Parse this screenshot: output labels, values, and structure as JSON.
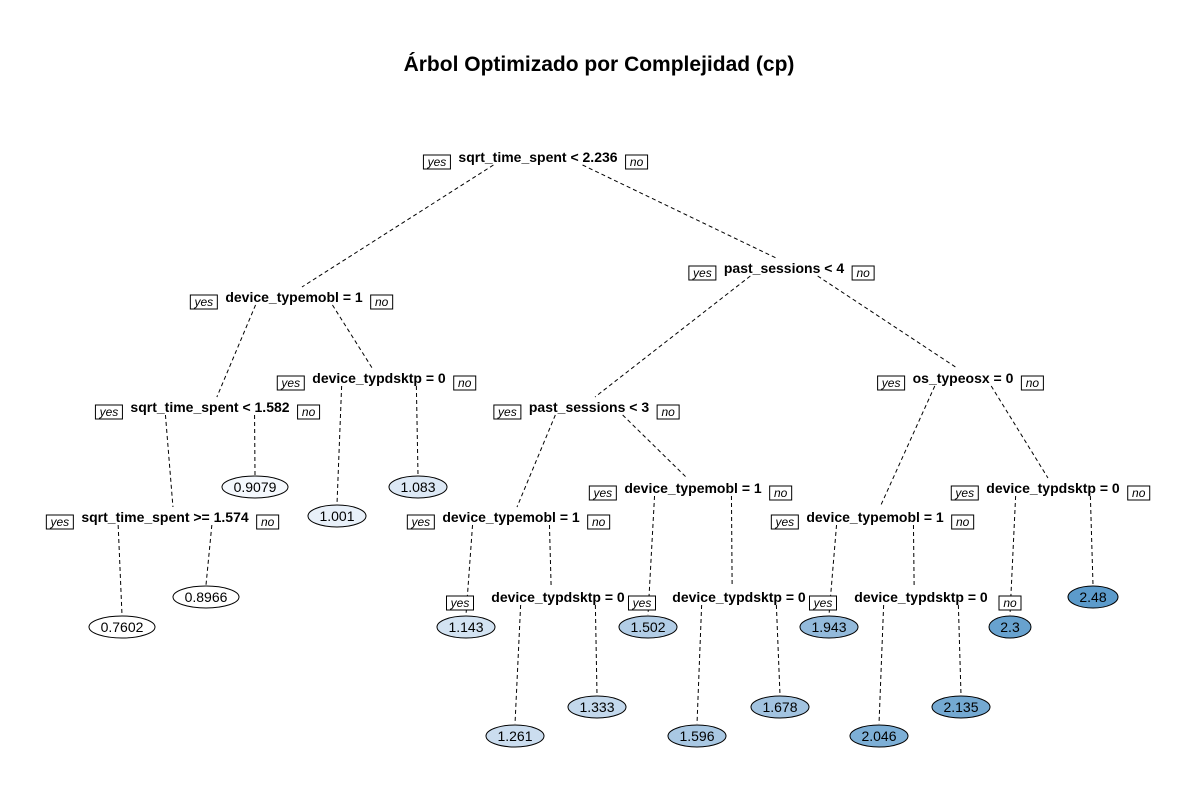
{
  "title": "Árbol Optimizado por Complejidad (cp)",
  "yes_label": "yes",
  "no_label": "no",
  "splits": [
    {
      "id": "n1",
      "label": "sqrt_time_spent < 2.236"
    },
    {
      "id": "n2",
      "label": "device_typemobl = 1"
    },
    {
      "id": "n3",
      "label": "past_sessions < 4"
    },
    {
      "id": "n4",
      "label": "sqrt_time_spent < 1.582"
    },
    {
      "id": "n5",
      "label": "device_typdsktp = 0"
    },
    {
      "id": "n6",
      "label": "sqrt_time_spent >= 1.574"
    },
    {
      "id": "n7",
      "label": "past_sessions < 3"
    },
    {
      "id": "n8",
      "label": "os_typeosx = 0"
    },
    {
      "id": "n9",
      "label": "device_typemobl = 1"
    },
    {
      "id": "n10",
      "label": "device_typemobl = 1"
    },
    {
      "id": "n11",
      "label": "device_typemobl = 1"
    },
    {
      "id": "n12",
      "label": "device_typdsktp = 0"
    },
    {
      "id": "n13",
      "label": "device_typdsktp = 0"
    },
    {
      "id": "n14",
      "label": "device_typdsktp = 0"
    },
    {
      "id": "n15",
      "label": "device_typdsktp = 0"
    }
  ],
  "leaves": [
    {
      "id": "l1",
      "value": "0.7602",
      "fill": "#ffffff"
    },
    {
      "id": "l2",
      "value": "0.8966",
      "fill": "#ffffff"
    },
    {
      "id": "l3",
      "value": "0.9079",
      "fill": "#f4f8fd"
    },
    {
      "id": "l4",
      "value": "1.001",
      "fill": "#e8f0f9"
    },
    {
      "id": "l5",
      "value": "1.083",
      "fill": "#dce8f5"
    },
    {
      "id": "l6",
      "value": "1.143",
      "fill": "#d3e3f2"
    },
    {
      "id": "l7",
      "value": "1.261",
      "fill": "#cbddef"
    },
    {
      "id": "l8",
      "value": "1.333",
      "fill": "#c3d8ec"
    },
    {
      "id": "l9",
      "value": "1.502",
      "fill": "#b2cde6"
    },
    {
      "id": "l10",
      "value": "1.596",
      "fill": "#a9c8e3"
    },
    {
      "id": "l11",
      "value": "1.678",
      "fill": "#a2c3e0"
    },
    {
      "id": "l12",
      "value": "1.943",
      "fill": "#93badb"
    },
    {
      "id": "l13",
      "value": "2.046",
      "fill": "#7dafd6"
    },
    {
      "id": "l14",
      "value": "2.135",
      "fill": "#74a9d2"
    },
    {
      "id": "l15",
      "value": "2.3",
      "fill": "#68a2cf"
    },
    {
      "id": "l16",
      "value": "2.48",
      "fill": "#5c9bcb"
    }
  ]
}
